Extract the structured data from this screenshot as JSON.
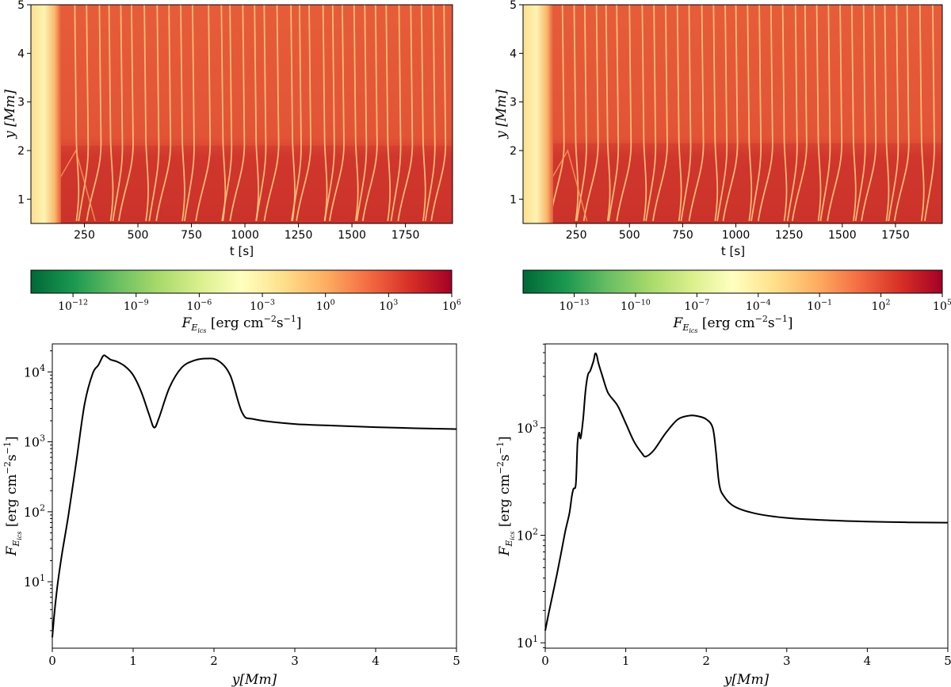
{
  "chart_data": [
    {
      "id": "heatmap-left",
      "type": "heatmap",
      "xlabel": "t [s]",
      "ylabel": "y [Mm]",
      "xlim": [
        0,
        1970
      ],
      "ylim": [
        0.5,
        5.0
      ],
      "xticks": [
        250,
        500,
        750,
        1000,
        1250,
        1500,
        1750
      ],
      "yticks": [
        1,
        2,
        3,
        4,
        5
      ],
      "streaks": [
        130,
        205,
        260,
        320,
        365,
        420,
        470,
        530,
        590,
        645,
        700,
        755,
        830,
        890,
        930,
        990,
        1045,
        1090,
        1150,
        1215,
        1255,
        1300,
        1365,
        1410,
        1455,
        1510,
        1560,
        1610,
        1660,
        1720,
        1775,
        1825,
        1880,
        1930
      ],
      "band_top": 2.1
    },
    {
      "id": "heatmap-right",
      "type": "heatmap",
      "xlabel": "t [s]",
      "ylabel": "y [Mm]",
      "xlim": [
        0,
        1970
      ],
      "ylim": [
        0.5,
        5.0
      ],
      "xticks": [
        250,
        500,
        750,
        1000,
        1250,
        1500,
        1750
      ],
      "yticks": [
        1,
        2,
        3,
        4,
        5
      ],
      "streaks": [
        185,
        240,
        290,
        345,
        390,
        440,
        500,
        560,
        615,
        670,
        725,
        780,
        840,
        895,
        950,
        1000,
        1055,
        1110,
        1165,
        1220,
        1280,
        1325,
        1380,
        1435,
        1490,
        1545,
        1600,
        1650,
        1700,
        1755,
        1805,
        1865,
        1925
      ],
      "band_top": 2.15
    },
    {
      "id": "colorbar-left",
      "type": "colorbar",
      "scale": "log",
      "range_exp": [
        -14,
        6
      ],
      "tick_exps": [
        -12,
        -9,
        -6,
        -3,
        0,
        3,
        6
      ],
      "label": "F_{E_ics} [erg cm^-2 s^-1]"
    },
    {
      "id": "colorbar-right",
      "type": "colorbar",
      "scale": "log",
      "range_exp": [
        -15.5,
        5
      ],
      "tick_exps": [
        -13,
        -10,
        -7,
        -4,
        -1,
        2,
        5
      ],
      "label": "F_{E_ics} [erg cm^-2 s^-1]"
    },
    {
      "id": "line-left",
      "type": "line",
      "yscale": "log",
      "xlabel": "y[Mm]",
      "ylabel": "F_{E_ics} [erg cm^-2 s^-1]",
      "xlim": [
        0,
        5
      ],
      "ylim_exp": [
        0.05,
        4.4
      ],
      "xticks": [
        0,
        1,
        2,
        3,
        4,
        5
      ],
      "ytick_exps": [
        1,
        2,
        3,
        4
      ],
      "x": [
        0,
        0.03,
        0.07,
        0.12,
        0.2,
        0.3,
        0.4,
        0.5,
        0.57,
        0.63,
        0.67,
        0.72,
        0.8,
        0.9,
        1.0,
        1.1,
        1.2,
        1.26,
        1.32,
        1.45,
        1.6,
        1.75,
        1.9,
        2.05,
        2.2,
        2.35,
        2.5,
        3.0,
        3.5,
        4.0,
        4.5,
        5.0
      ],
      "y": [
        1.6,
        4,
        10,
        25,
        90,
        550,
        3500,
        9500,
        12500,
        17000,
        16500,
        15000,
        14000,
        12000,
        9000,
        5200,
        2400,
        1600,
        2200,
        6000,
        11500,
        14500,
        15500,
        14500,
        9000,
        2600,
        2100,
        1800,
        1700,
        1620,
        1560,
        1520
      ]
    },
    {
      "id": "line-right",
      "type": "line",
      "yscale": "log",
      "xlabel": "y[Mm]",
      "ylabel": "F_{E_ics} [erg cm^-2 s^-1]",
      "xlim": [
        0,
        5
      ],
      "ylim_exp": [
        0.95,
        3.78
      ],
      "xticks": [
        0,
        1,
        2,
        3,
        4,
        5
      ],
      "ytick_exps": [
        1,
        2,
        3
      ],
      "x": [
        0,
        0.05,
        0.1,
        0.15,
        0.2,
        0.25,
        0.3,
        0.33,
        0.35,
        0.38,
        0.4,
        0.42,
        0.44,
        0.47,
        0.5,
        0.53,
        0.56,
        0.6,
        0.62,
        0.64,
        0.66,
        0.7,
        0.76,
        0.8,
        0.9,
        1.0,
        1.1,
        1.2,
        1.25,
        1.35,
        1.5,
        1.65,
        1.8,
        1.9,
        2.0,
        2.08,
        2.12,
        2.16,
        2.22,
        2.35,
        2.6,
        3.0,
        3.5,
        4.0,
        4.5,
        5.0
      ],
      "y": [
        13,
        20,
        30,
        45,
        70,
        110,
        160,
        230,
        270,
        300,
        700,
        900,
        800,
        1200,
        2200,
        3100,
        3400,
        4200,
        4900,
        4700,
        4000,
        3200,
        2300,
        2000,
        1600,
        1100,
        750,
        580,
        540,
        620,
        900,
        1200,
        1300,
        1280,
        1200,
        1000,
        600,
        300,
        230,
        185,
        160,
        145,
        138,
        134,
        132,
        131
      ]
    }
  ]
}
